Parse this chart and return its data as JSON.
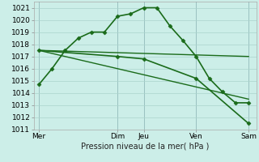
{
  "background_color": "#cceee8",
  "grid_color": "#aad4cc",
  "line_color": "#1a6b1a",
  "ylim": [
    1011,
    1021.5
  ],
  "yticks": [
    1011,
    1012,
    1013,
    1014,
    1015,
    1016,
    1017,
    1018,
    1019,
    1020,
    1021
  ],
  "xlabel": "Pression niveau de la mer( hPa )",
  "xtick_labels": [
    "Mer",
    "Dim",
    "Jeu",
    "Ven",
    "Sam"
  ],
  "xtick_positions": [
    0,
    3,
    4,
    6,
    8
  ],
  "xlim": [
    -0.2,
    8.3
  ],
  "series": [
    {
      "x": [
        0,
        0.5,
        1,
        1.5,
        2,
        2.5,
        3,
        3.5,
        4,
        4.5,
        5,
        5.5,
        6,
        6.5,
        7,
        7.5,
        8
      ],
      "y": [
        1014.7,
        1016.0,
        1017.5,
        1018.5,
        1019.0,
        1019.0,
        1020.3,
        1020.5,
        1021.0,
        1021.0,
        1019.5,
        1018.3,
        1017.0,
        1015.2,
        1014.1,
        1013.2,
        1013.2
      ],
      "marker": "D",
      "markersize": 2.5,
      "linewidth": 1.2
    },
    {
      "x": [
        0,
        8
      ],
      "y": [
        1017.5,
        1017.0
      ],
      "marker": null,
      "markersize": 0,
      "linewidth": 1.0
    },
    {
      "x": [
        0,
        8
      ],
      "y": [
        1017.5,
        1013.5
      ],
      "marker": null,
      "markersize": 0,
      "linewidth": 1.0
    },
    {
      "x": [
        0,
        3,
        4,
        6,
        8
      ],
      "y": [
        1017.5,
        1017.0,
        1016.8,
        1015.2,
        1011.5
      ],
      "marker": "D",
      "markersize": 2.5,
      "linewidth": 1.2
    }
  ],
  "vlines": [
    0,
    3,
    4,
    6,
    8
  ],
  "label_fontsize": 7,
  "tick_fontsize": 6.5
}
